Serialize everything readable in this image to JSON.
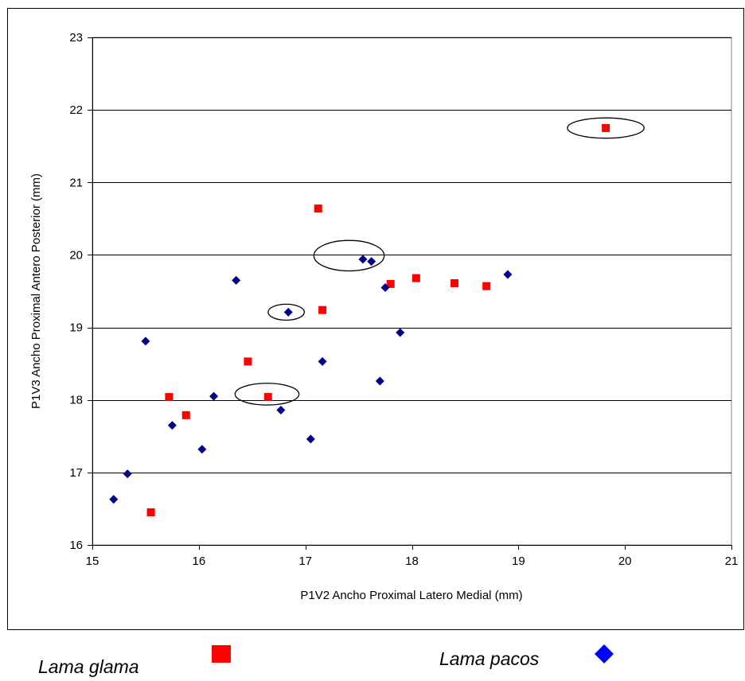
{
  "chart_data": {
    "type": "scatter",
    "title": "",
    "xlabel": "P1V2 Ancho Proximal Latero Medial (mm)",
    "ylabel": "P1V3 Ancho Proximal Antero Posterior (mm)",
    "xlim": [
      15,
      21
    ],
    "ylim": [
      16,
      23
    ],
    "xticks": [
      "15",
      "16",
      "17",
      "18",
      "19",
      "20",
      "21"
    ],
    "yticks": [
      "16",
      "17",
      "18",
      "19",
      "20",
      "21",
      "22",
      "23"
    ],
    "grid": "horizontal",
    "legend_position": "bottom",
    "series": [
      {
        "name": "Lama glama",
        "marker": "square",
        "color": "#ff0000",
        "points": [
          {
            "x": 15.55,
            "y": 16.45
          },
          {
            "x": 15.72,
            "y": 18.04
          },
          {
            "x": 15.88,
            "y": 17.79
          },
          {
            "x": 16.46,
            "y": 18.53
          },
          {
            "x": 16.65,
            "y": 18.04
          },
          {
            "x": 17.12,
            "y": 20.64
          },
          {
            "x": 17.16,
            "y": 19.24
          },
          {
            "x": 17.8,
            "y": 19.6
          },
          {
            "x": 18.04,
            "y": 19.68
          },
          {
            "x": 18.4,
            "y": 19.61
          },
          {
            "x": 18.7,
            "y": 19.57
          },
          {
            "x": 19.82,
            "y": 21.75
          }
        ]
      },
      {
        "name": "Lama pacos",
        "marker": "diamond",
        "color": "#00008b",
        "points": [
          {
            "x": 15.2,
            "y": 16.63
          },
          {
            "x": 15.33,
            "y": 16.98
          },
          {
            "x": 15.5,
            "y": 18.81
          },
          {
            "x": 15.75,
            "y": 17.65
          },
          {
            "x": 16.03,
            "y": 17.32
          },
          {
            "x": 16.14,
            "y": 18.05
          },
          {
            "x": 16.35,
            "y": 19.65
          },
          {
            "x": 16.77,
            "y": 17.86
          },
          {
            "x": 16.84,
            "y": 19.21
          },
          {
            "x": 17.05,
            "y": 17.46
          },
          {
            "x": 17.16,
            "y": 18.53
          },
          {
            "x": 17.54,
            "y": 19.94
          },
          {
            "x": 17.62,
            "y": 19.91
          },
          {
            "x": 17.7,
            "y": 18.26
          },
          {
            "x": 17.75,
            "y": 19.55
          },
          {
            "x": 17.89,
            "y": 18.93
          },
          {
            "x": 18.9,
            "y": 19.73
          }
        ]
      }
    ],
    "annotations": [
      {
        "type": "ellipse",
        "x": 19.82,
        "y": 21.75,
        "rx": 0.36,
        "ry": 0.14
      },
      {
        "type": "ellipse",
        "x": 17.41,
        "y": 19.99,
        "rx": 0.33,
        "ry": 0.21
      },
      {
        "type": "ellipse",
        "x": 16.82,
        "y": 19.21,
        "rx": 0.17,
        "ry": 0.11
      },
      {
        "type": "ellipse",
        "x": 16.64,
        "y": 18.08,
        "rx": 0.3,
        "ry": 0.15
      }
    ]
  },
  "legend": {
    "items": [
      {
        "label": "Lama glama",
        "marker": "square",
        "color": "#ff0000"
      },
      {
        "label": "Lama pacos",
        "marker": "diamond",
        "color": "#0000ff"
      }
    ]
  }
}
